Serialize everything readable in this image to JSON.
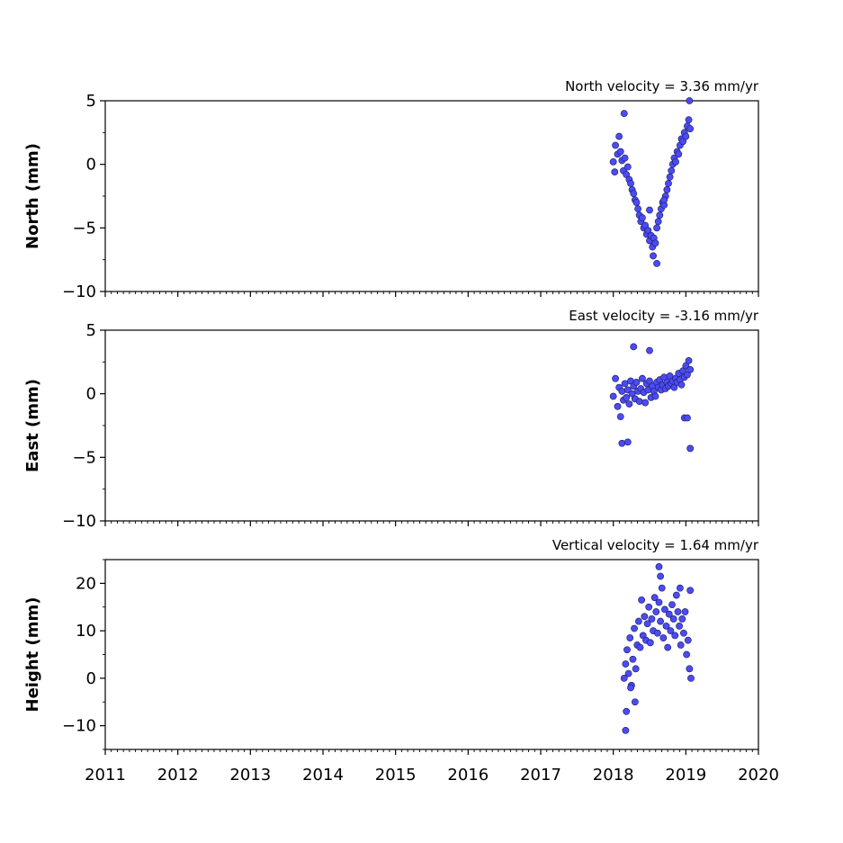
{
  "chart_data": [
    {
      "type": "scatter",
      "title": "North velocity = 3.36 mm/yr",
      "ylabel": "North (mm)",
      "ylim": [
        -10,
        5
      ],
      "yticks": [
        -10,
        -5,
        0,
        5
      ],
      "xlim": [
        2011,
        2020
      ],
      "grid": false,
      "series": [
        {
          "x": [
            2018.0,
            2018.03,
            2018.06,
            2018.08,
            2018.1,
            2018.12,
            2018.14,
            2018.16,
            2018.18,
            2018.2,
            2018.22,
            2018.24,
            2018.26,
            2018.28,
            2018.3,
            2018.32,
            2018.34,
            2018.36,
            2018.38,
            2018.4,
            2018.42,
            2018.44,
            2018.46,
            2018.48,
            2018.5,
            2018.52,
            2018.54,
            2018.56,
            2018.58,
            2018.6,
            2018.62,
            2018.64,
            2018.66,
            2018.68,
            2018.7,
            2018.72,
            2018.74,
            2018.76,
            2018.78,
            2018.8,
            2018.82,
            2018.84,
            2018.86,
            2018.88,
            2018.9,
            2018.92,
            2018.94,
            2018.96,
            2018.98,
            2019.0,
            2019.02,
            2019.04,
            2019.06,
            2018.15,
            2018.55,
            2018.6,
            2019.05,
            2018.02,
            2018.5,
            2018.7
          ],
          "y": [
            0.2,
            1.5,
            0.8,
            2.2,
            1.0,
            0.3,
            -0.5,
            0.5,
            -0.8,
            -0.2,
            -1.2,
            -1.5,
            -2.0,
            -2.3,
            -2.8,
            -3.0,
            -3.5,
            -4.0,
            -4.5,
            -4.2,
            -5.0,
            -4.8,
            -5.5,
            -5.2,
            -6.0,
            -5.6,
            -6.5,
            -5.8,
            -6.2,
            -5.0,
            -4.5,
            -4.0,
            -3.5,
            -3.0,
            -3.2,
            -2.5,
            -2.0,
            -1.5,
            -1.0,
            -0.5,
            0.0,
            0.5,
            0.2,
            1.0,
            0.8,
            1.5,
            2.0,
            1.8,
            2.5,
            2.2,
            3.0,
            3.5,
            2.8,
            4.0,
            -7.2,
            -7.8,
            5.0,
            -0.6,
            -3.6,
            -2.8
          ]
        }
      ]
    },
    {
      "type": "scatter",
      "title": "East velocity = -3.16 mm/yr",
      "ylabel": "East (mm)",
      "ylim": [
        -10,
        5
      ],
      "yticks": [
        -10,
        -5,
        0,
        5
      ],
      "xlim": [
        2011,
        2020
      ],
      "grid": false,
      "series": [
        {
          "x": [
            2018.0,
            2018.03,
            2018.06,
            2018.08,
            2018.1,
            2018.12,
            2018.14,
            2018.16,
            2018.18,
            2018.2,
            2018.22,
            2018.24,
            2018.26,
            2018.28,
            2018.3,
            2018.32,
            2018.34,
            2018.36,
            2018.38,
            2018.4,
            2018.42,
            2018.44,
            2018.46,
            2018.48,
            2018.5,
            2018.52,
            2018.54,
            2018.56,
            2018.58,
            2018.6,
            2018.62,
            2018.64,
            2018.66,
            2018.68,
            2018.7,
            2018.72,
            2018.74,
            2018.76,
            2018.78,
            2018.8,
            2018.82,
            2018.84,
            2018.86,
            2018.88,
            2018.9,
            2018.92,
            2018.94,
            2018.96,
            2018.98,
            2019.0,
            2019.02,
            2019.04,
            2019.06,
            2018.12,
            2018.2,
            2018.28,
            2018.5,
            2019.06,
            2018.98,
            2019.02
          ],
          "y": [
            -0.2,
            1.2,
            -1.0,
            0.5,
            -1.8,
            0.2,
            -0.5,
            0.8,
            -0.3,
            0.3,
            -0.8,
            1.0,
            0.0,
            0.6,
            -0.4,
            0.9,
            0.2,
            -0.6,
            0.4,
            1.2,
            0.1,
            -0.7,
            0.8,
            0.3,
            1.0,
            -0.3,
            0.6,
            0.2,
            -0.2,
            0.9,
            0.5,
            1.1,
            0.3,
            0.7,
            1.3,
            0.4,
            0.9,
            0.6,
            1.4,
            0.8,
            1.0,
            0.5,
            1.2,
            0.9,
            1.6,
            1.1,
            0.7,
            1.8,
            1.3,
            2.2,
            1.5,
            2.6,
            1.9,
            -3.9,
            -3.8,
            3.7,
            3.4,
            -4.3,
            -1.9,
            -1.9
          ]
        }
      ]
    },
    {
      "type": "scatter",
      "title": "Vertical velocity = 1.64 mm/yr",
      "ylabel": "Height (mm)",
      "ylim": [
        -15,
        25
      ],
      "yticks": [
        -10,
        0,
        10,
        20
      ],
      "xlim": [
        2011,
        2020
      ],
      "xticks": [
        2011,
        2012,
        2013,
        2014,
        2015,
        2016,
        2017,
        2018,
        2019,
        2020
      ],
      "xlabel": "",
      "grid": false,
      "series": [
        {
          "x": [
            2018.15,
            2018.17,
            2018.19,
            2018.21,
            2018.23,
            2018.25,
            2018.27,
            2018.29,
            2018.31,
            2018.33,
            2018.35,
            2018.37,
            2018.39,
            2018.41,
            2018.43,
            2018.45,
            2018.47,
            2018.49,
            2018.51,
            2018.53,
            2018.55,
            2018.57,
            2018.59,
            2018.61,
            2018.63,
            2018.65,
            2018.67,
            2018.69,
            2018.71,
            2018.73,
            2018.75,
            2018.77,
            2018.79,
            2018.81,
            2018.83,
            2018.85,
            2018.87,
            2018.89,
            2018.91,
            2018.93,
            2018.95,
            2018.97,
            2018.99,
            2019.01,
            2019.03,
            2019.05,
            2019.07,
            2018.18,
            2018.17,
            2018.3,
            2018.65,
            2018.63,
            2018.92,
            2019.06,
            2018.24
          ],
          "y": [
            0.0,
            3.0,
            6.0,
            1.0,
            8.5,
            -1.5,
            4.0,
            10.5,
            2.0,
            7.0,
            12.0,
            6.5,
            16.5,
            9.0,
            13.0,
            8.0,
            11.5,
            15.0,
            7.5,
            12.5,
            10.0,
            17.0,
            14.0,
            9.5,
            16.0,
            12.0,
            19.0,
            8.5,
            14.5,
            11.0,
            6.5,
            13.5,
            10.0,
            15.5,
            12.5,
            9.0,
            17.5,
            14.0,
            11.0,
            7.0,
            12.5,
            9.5,
            14.0,
            5.0,
            8.0,
            2.0,
            0.0,
            -7.0,
            -11.0,
            -5.0,
            21.5,
            23.5,
            19.0,
            18.5,
            -2.0
          ]
        }
      ]
    }
  ]
}
